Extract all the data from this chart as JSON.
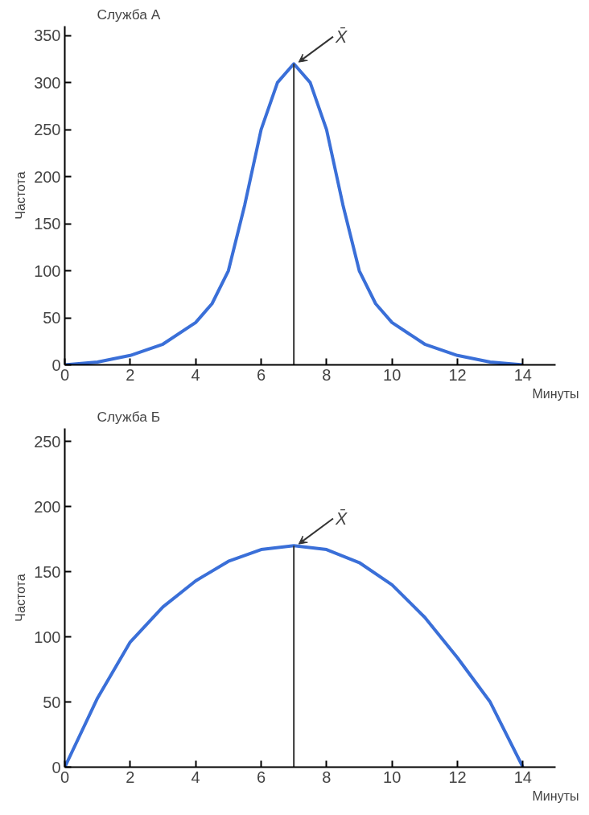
{
  "chart_data": [
    {
      "type": "line",
      "title": "Служба А",
      "xlabel": "Минуты",
      "ylabel": "Частота",
      "xlim": [
        0,
        15
      ],
      "ylim": [
        0,
        360
      ],
      "xticks": [
        0,
        2,
        4,
        6,
        8,
        10,
        12,
        14
      ],
      "yticks": [
        0,
        50,
        100,
        150,
        200,
        250,
        300,
        350
      ],
      "grid": false,
      "series": [
        {
          "color": "#3a6fd8",
          "x": [
            0,
            1,
            2,
            3,
            4,
            4.5,
            5,
            5.5,
            6,
            6.5,
            7,
            7.5,
            8,
            8.5,
            9,
            9.5,
            10,
            11,
            12,
            13,
            14
          ],
          "values": [
            0,
            3,
            10,
            22,
            45,
            65,
            100,
            170,
            250,
            300,
            320,
            300,
            250,
            170,
            100,
            65,
            45,
            22,
            10,
            3,
            0
          ]
        }
      ],
      "ref_lines": [
        {
          "axis": "x",
          "value": 7,
          "color": "#333333"
        }
      ],
      "annotations": [
        {
          "text": "X̄",
          "x": 7,
          "y": 320
        }
      ]
    },
    {
      "type": "line",
      "title": "Служба Б",
      "xlabel": "Минуты",
      "ylabel": "Частота",
      "xlim": [
        0,
        15
      ],
      "ylim": [
        0,
        260
      ],
      "xticks": [
        0,
        2,
        4,
        6,
        8,
        10,
        12,
        14
      ],
      "yticks": [
        0,
        50,
        100,
        150,
        200,
        250
      ],
      "grid": false,
      "series": [
        {
          "color": "#3a6fd8",
          "x": [
            0,
            1,
            2,
            3,
            4,
            5,
            6,
            7,
            8,
            9,
            10,
            11,
            12,
            13,
            14
          ],
          "values": [
            0,
            53,
            96,
            123,
            143,
            158,
            167,
            170,
            167,
            157,
            140,
            115,
            84,
            50,
            0
          ]
        }
      ],
      "ref_lines": [
        {
          "axis": "x",
          "value": 7,
          "color": "#333333"
        }
      ],
      "annotations": [
        {
          "text": "X̄",
          "x": 7,
          "y": 170
        }
      ]
    }
  ]
}
